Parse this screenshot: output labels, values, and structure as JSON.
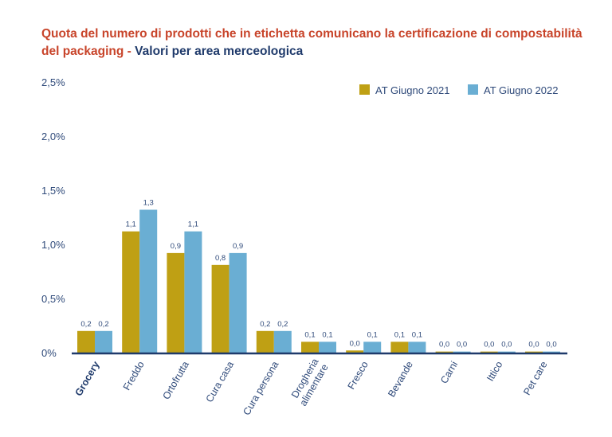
{
  "title": {
    "part1": "Quota del numero di prodotti che in etichetta comunicano la certificazione di compostabilità del packaging",
    "separator": " - ",
    "part2": "Valori per area merceologica"
  },
  "chart_data": {
    "type": "bar",
    "categories": [
      "Grocery",
      "Freddo",
      "Ortofrutta",
      "Cura casa",
      "Cura persona",
      "Drogheria alimentare",
      "Fresco",
      "Bevande",
      "Carni",
      "Ittico",
      "Pet care"
    ],
    "highlight_category": "Grocery",
    "series": [
      {
        "name": "AT Giugno 2021",
        "color": "#bfa014",
        "values": [
          0.2,
          1.12,
          0.92,
          0.81,
          0.2,
          0.1,
          0.02,
          0.1,
          0.01,
          0.01,
          0.01
        ],
        "labels": [
          "0,2",
          "1,1",
          "0,9",
          "0,8",
          "0,2",
          "0,1",
          "0,0",
          "0,1",
          "0,0",
          "0,0",
          "0,0"
        ]
      },
      {
        "name": "AT Giugno 2022",
        "color": "#6aaed3",
        "values": [
          0.2,
          1.32,
          1.12,
          0.92,
          0.2,
          0.1,
          0.1,
          0.1,
          0.01,
          0.01,
          0.01
        ],
        "labels": [
          "0,2",
          "1,3",
          "1,1",
          "0,9",
          "0,2",
          "0,1",
          "0,1",
          "0,1",
          "0,0",
          "0,0",
          "0,0"
        ]
      }
    ],
    "ylim": [
      0,
      2.5
    ],
    "yticks": [
      0,
      0.5,
      1.0,
      1.5,
      2.0,
      2.5
    ],
    "ytick_labels": [
      "0%",
      "0,5%",
      "1,0%",
      "1,5%",
      "2,0%",
      "2,5%"
    ],
    "legend_position": "top-right",
    "grid": false
  }
}
